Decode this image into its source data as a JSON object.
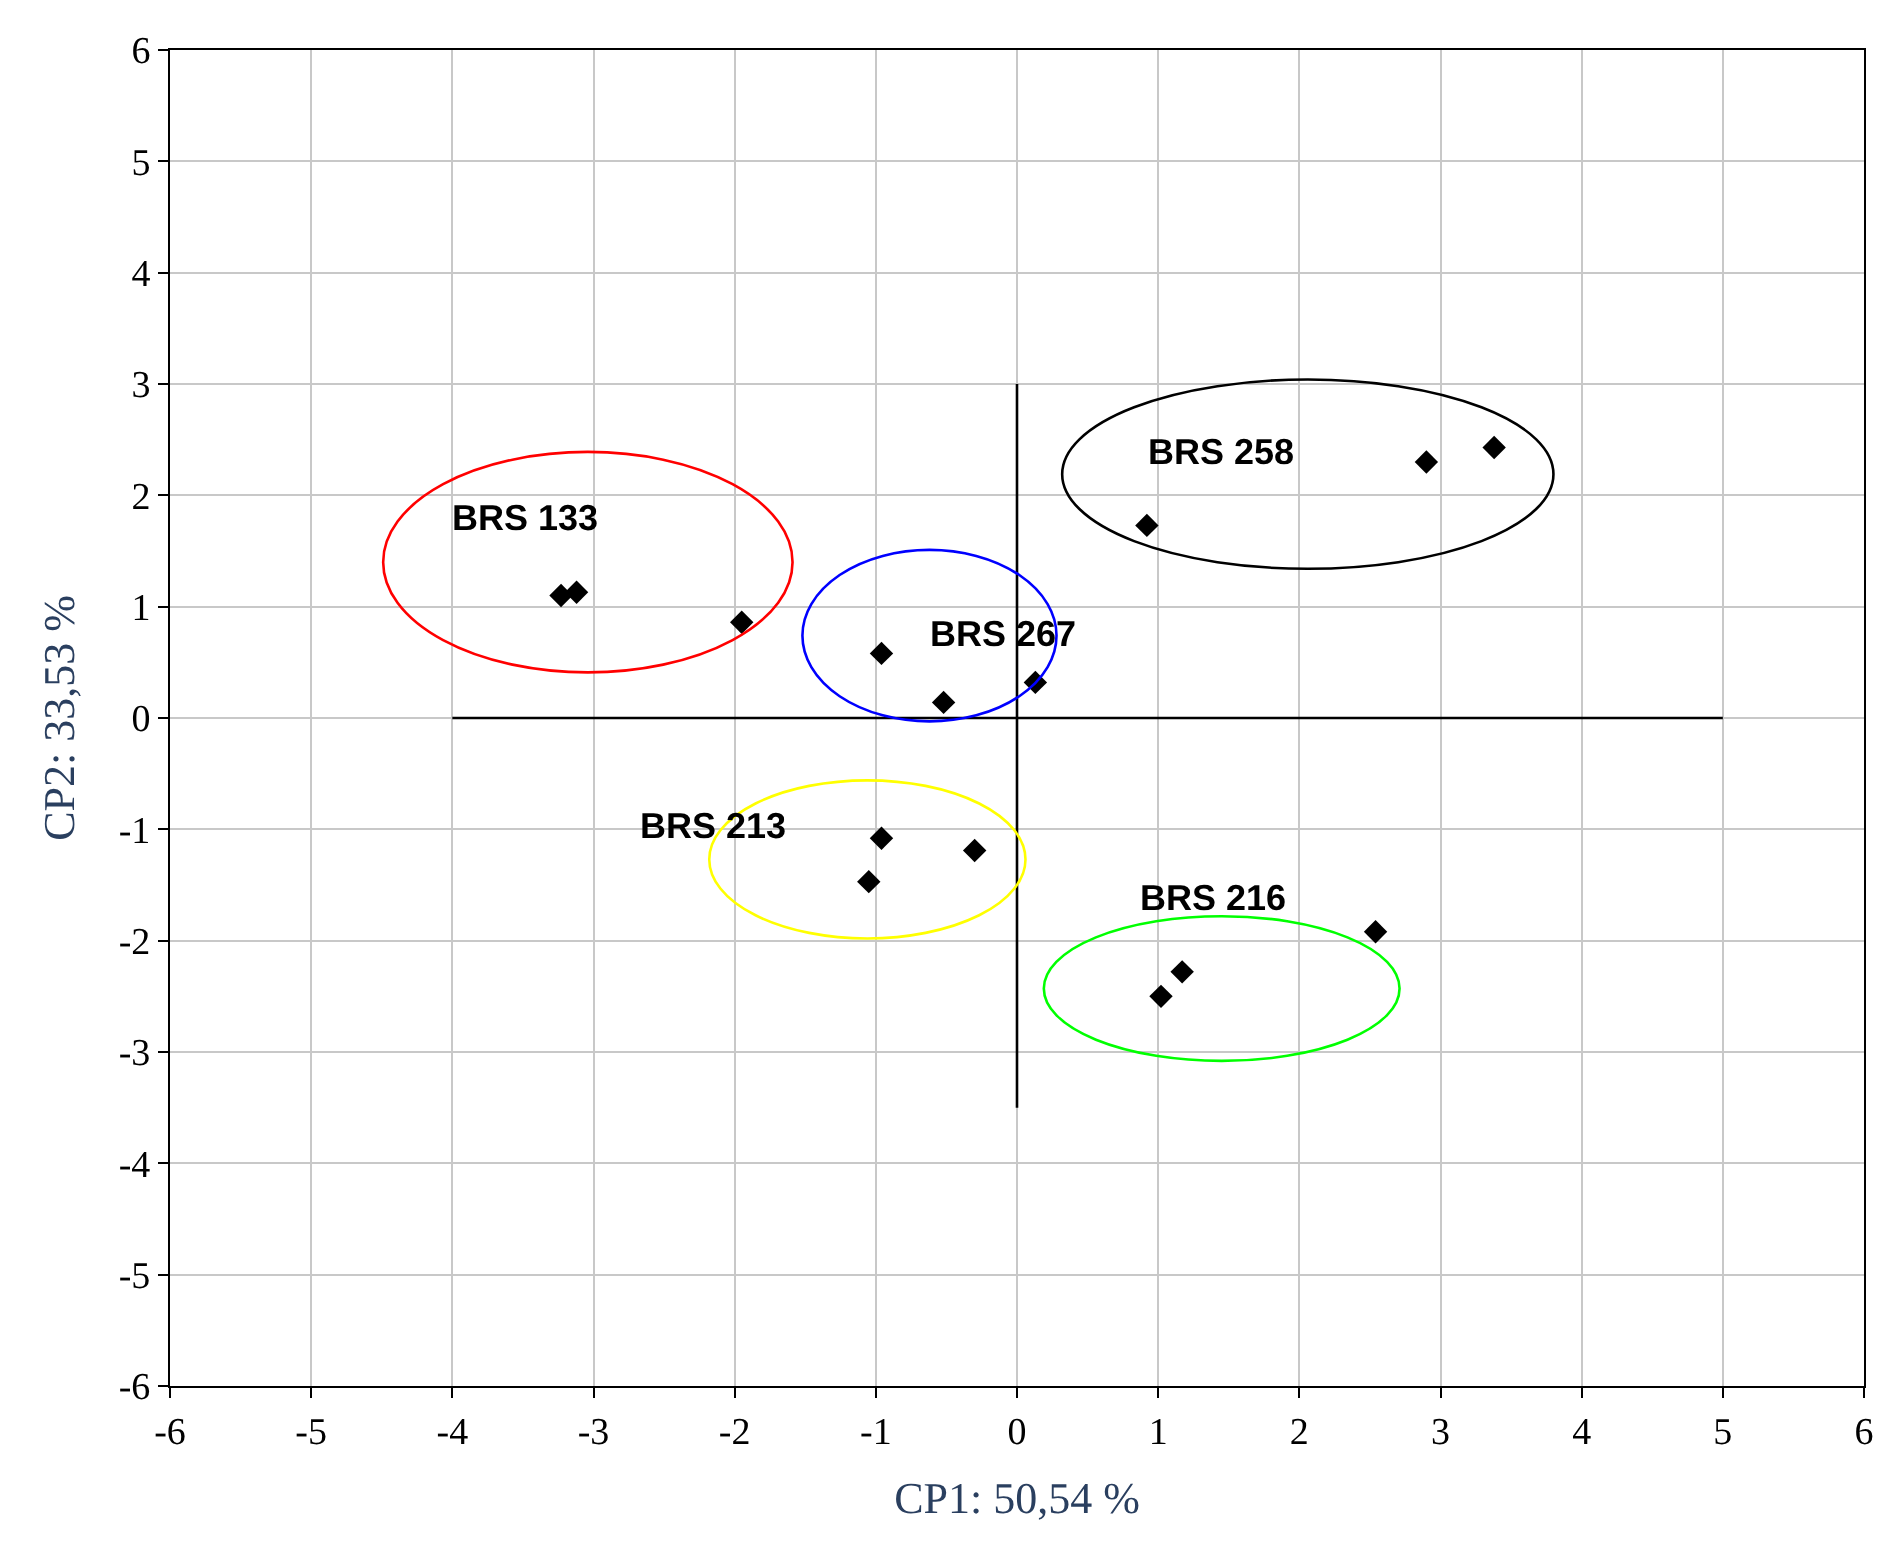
{
  "chart_data": {
    "type": "scatter",
    "xlabel": "CP1: 50,54 %",
    "ylabel": "CP2: 33,53 %",
    "xlim": [
      -6,
      6
    ],
    "ylim": [
      -6,
      6
    ],
    "xticks": [
      -6,
      -5,
      -4,
      -3,
      -2,
      -1,
      0,
      1,
      2,
      3,
      4,
      5,
      6
    ],
    "yticks": [
      -6,
      -5,
      -4,
      -3,
      -2,
      -1,
      0,
      1,
      2,
      3,
      4,
      5,
      6
    ],
    "grid": true,
    "marker": "diamond",
    "series": [
      {
        "type": "line",
        "marker": "none",
        "color": "#000000",
        "x": [
          0,
          0
        ],
        "values": [
          -3.5,
          3
        ]
      },
      {
        "type": "line",
        "marker": "none",
        "color": "#000000",
        "x": [
          -4,
          5
        ],
        "values": [
          0,
          0
        ]
      },
      {
        "name": "BRS 133",
        "color": "#000000",
        "x": [
          -3.23,
          -3.12,
          -1.95
        ],
        "values": [
          1.1,
          1.13,
          0.86
        ]
      },
      {
        "name": "BRS 267",
        "color": "#000000",
        "x": [
          -0.96,
          -0.52,
          0.13
        ],
        "values": [
          0.58,
          0.14,
          0.32
        ]
      },
      {
        "name": "BRS 258",
        "color": "#000000",
        "x": [
          0.92,
          2.9,
          3.38
        ],
        "values": [
          1.73,
          2.3,
          2.43
        ]
      },
      {
        "name": "BRS 213",
        "color": "#000000",
        "x": [
          -0.96,
          -0.3,
          -1.05
        ],
        "values": [
          -1.08,
          -1.19,
          -1.47
        ]
      },
      {
        "name": "BRS 216",
        "color": "#000000",
        "x": [
          1.02,
          1.17,
          2.54
        ],
        "values": [
          -2.5,
          -2.28,
          -1.92
        ]
      }
    ]
  }
}
